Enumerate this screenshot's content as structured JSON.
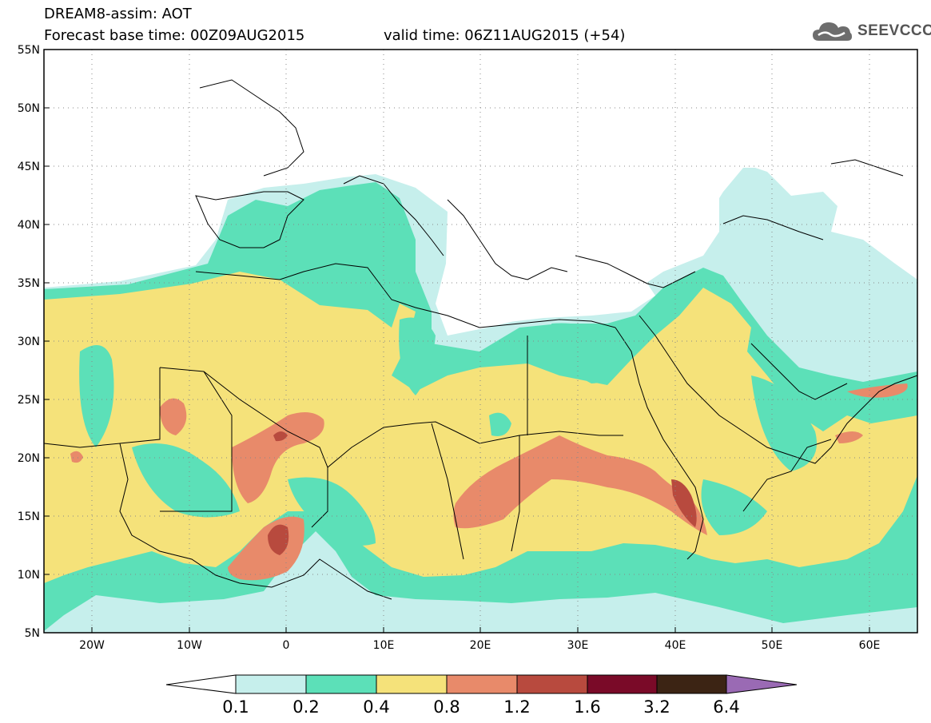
{
  "header": {
    "line1": "DREAM8-assim: AOT",
    "line2": "Forecast base time: 00Z09AUG2015",
    "line2_valid": "valid time: 06Z11AUG2015 (+54)",
    "logo_text": "SEEVCCC",
    "logo_icon": "cloud-icon"
  },
  "map": {
    "lon_labels": [
      "20W",
      "10W",
      "0",
      "10E",
      "20E",
      "30E",
      "40E",
      "50E",
      "60E"
    ],
    "lat_labels": [
      "55N",
      "50N",
      "45N",
      "40N",
      "35N",
      "30N",
      "25N",
      "20N",
      "15N",
      "10N",
      "5N"
    ]
  },
  "colorbar": {
    "labels": [
      "0.1",
      "0.2",
      "0.4",
      "0.8",
      "1.2",
      "1.6",
      "3.2",
      "6.4"
    ],
    "colors": [
      "#c6efec",
      "#5ce0b8",
      "#f5e27a",
      "#e88a6a",
      "#b84a3e",
      "#7a0a28",
      "#3c2414",
      "#9a6ab4"
    ]
  }
}
